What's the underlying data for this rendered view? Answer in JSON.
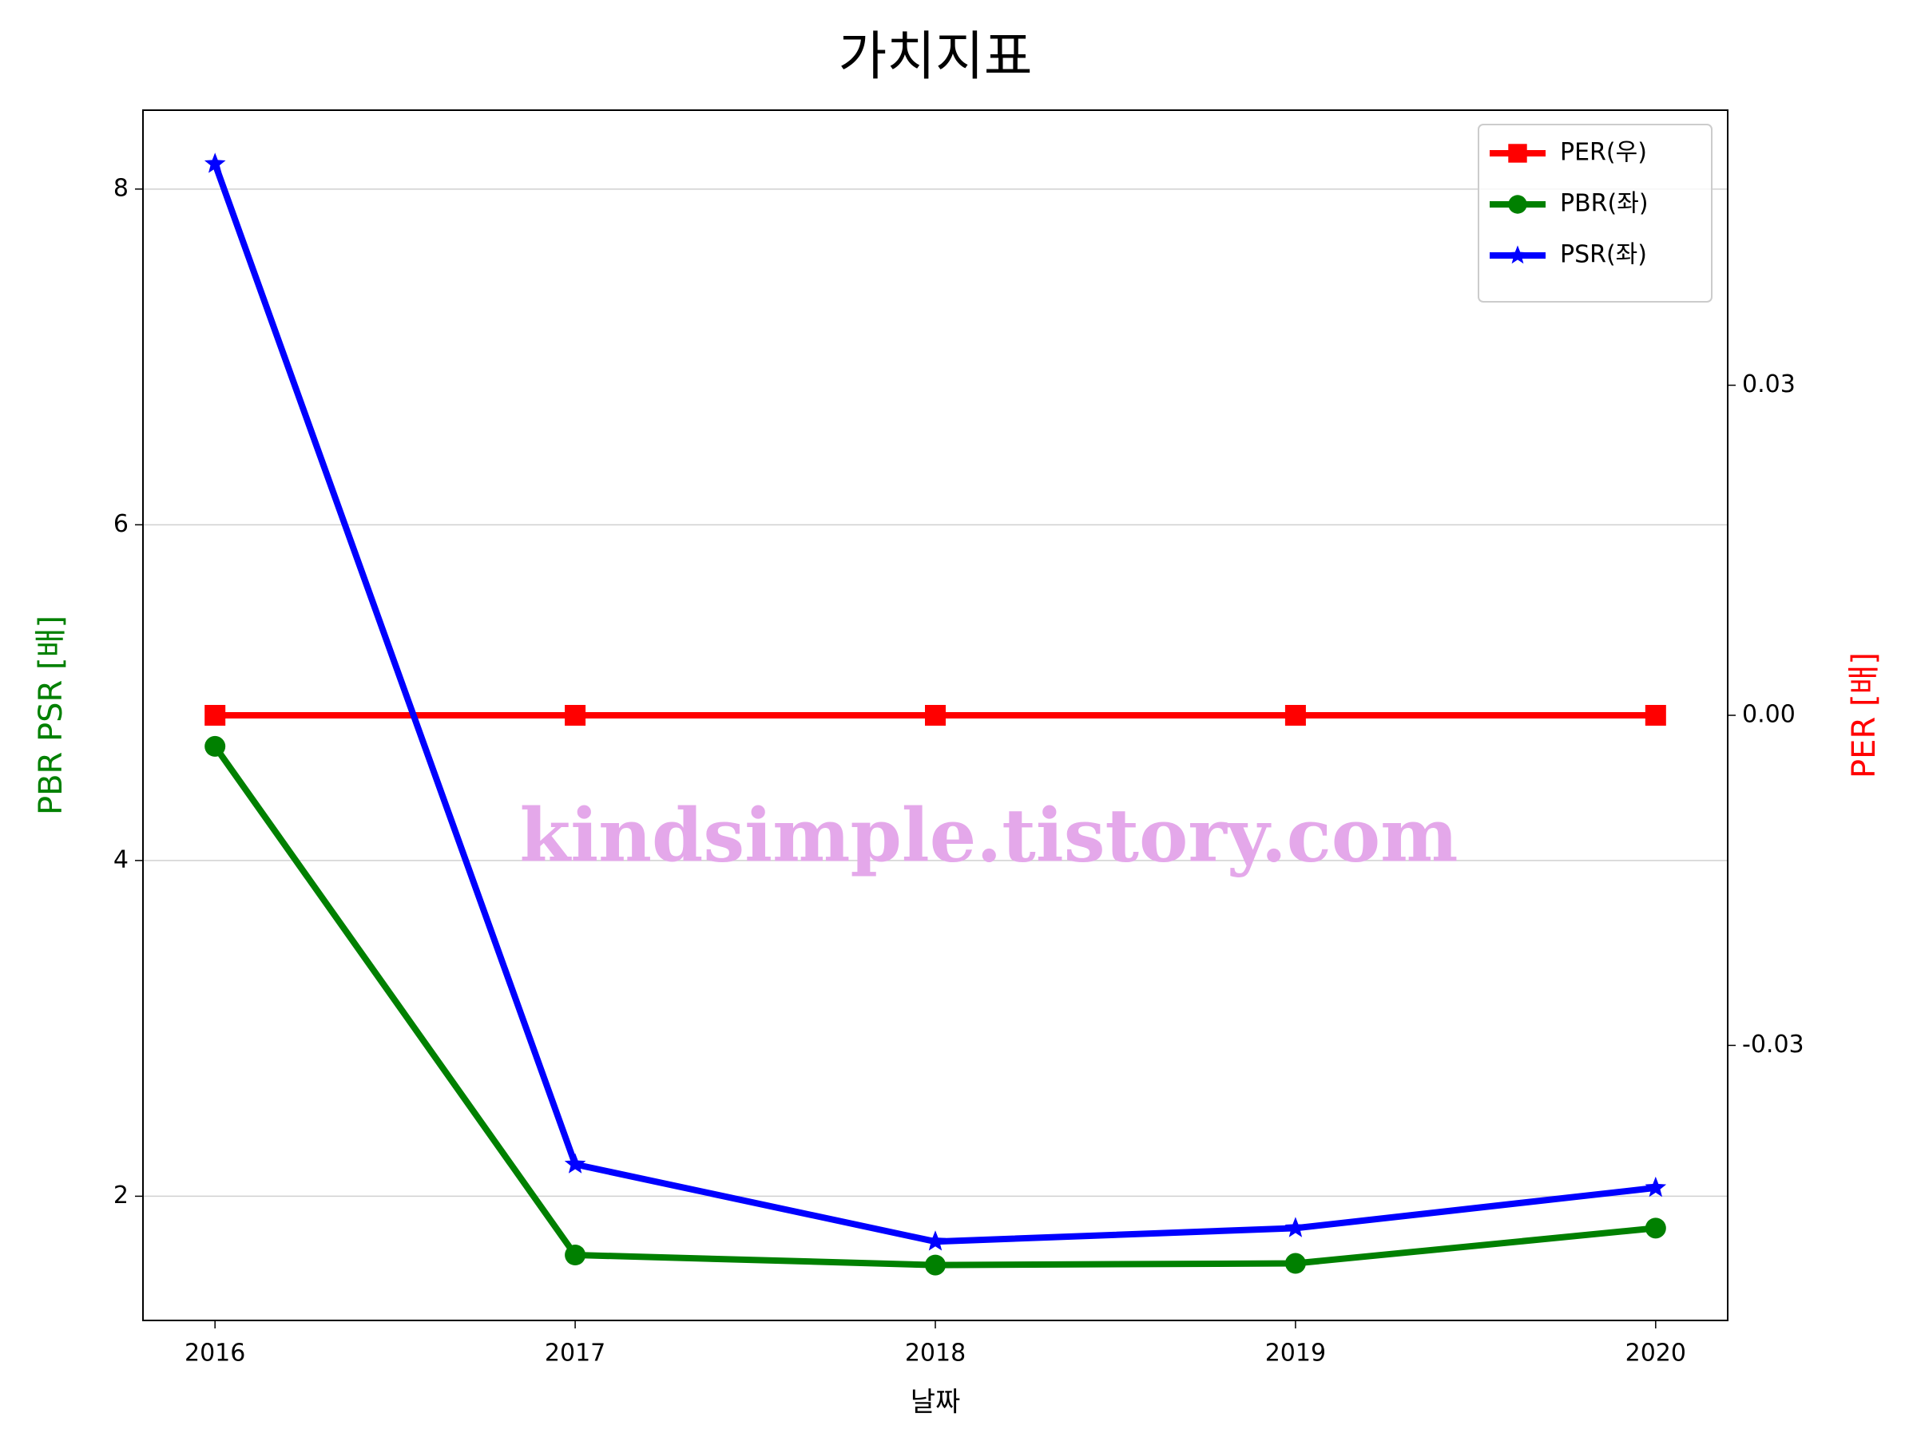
{
  "chart_data": {
    "type": "line",
    "title": "가치지표",
    "xlabel": "날짜",
    "ylabel": "PBR PSR [배]",
    "y2label": "PER [배]",
    "ylabel_color": "#008000",
    "y2label_color": "#ff0000",
    "watermark": "kindsimple.tistory.com",
    "watermark_color": "#e4a8ea",
    "x": [
      2016,
      2017,
      2018,
      2019,
      2020
    ],
    "xlim": [
      2015.8,
      2020.2
    ],
    "xticks": [
      2016,
      2017,
      2018,
      2019,
      2020
    ],
    "ylim": [
      1.26,
      8.47
    ],
    "yticks": [
      2,
      4,
      6,
      8
    ],
    "y2lim": [
      -0.055,
      0.055
    ],
    "y2ticks": [
      -0.03,
      {
        "value": 0,
        "label": "0.00"
      },
      0.03
    ],
    "grid": true,
    "legend": "upper right",
    "series": [
      {
        "name": "PER(우)",
        "color": "#ff0000",
        "marker": "square",
        "axis": "y2",
        "values": [
          0,
          0,
          0,
          0,
          0
        ]
      },
      {
        "name": "PBR(좌)",
        "color": "#008000",
        "marker": "circle",
        "values": [
          4.68,
          1.65,
          1.59,
          1.6,
          1.81
        ]
      },
      {
        "name": "PSR(좌)",
        "color": "#0000ff",
        "marker": "star",
        "values": [
          8.15,
          2.19,
          1.73,
          1.81,
          2.05
        ]
      }
    ]
  }
}
